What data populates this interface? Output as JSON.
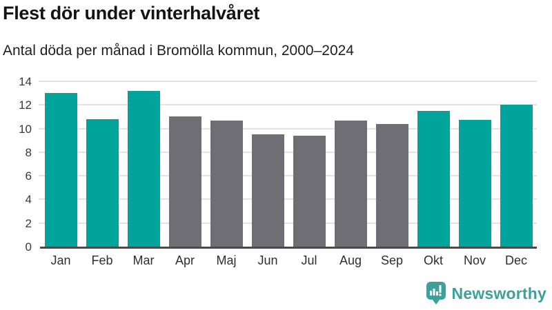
{
  "chart_data": {
    "type": "bar",
    "title": "Flest dör under vinterhalvåret",
    "subtitle": "Antal döda per månad i Bromölla kommun, 2000–2024",
    "categories": [
      "Jan",
      "Feb",
      "Mar",
      "Apr",
      "Maj",
      "Jun",
      "Jul",
      "Aug",
      "Sep",
      "Okt",
      "Nov",
      "Dec"
    ],
    "values": [
      13.0,
      10.8,
      13.2,
      11.0,
      10.65,
      9.5,
      9.4,
      10.65,
      10.4,
      11.5,
      10.75,
      12.0
    ],
    "bar_roles": [
      "winter",
      "winter",
      "winter",
      "summer",
      "summer",
      "summer",
      "summer",
      "summer",
      "summer",
      "winter",
      "winter",
      "winter"
    ],
    "palette": {
      "winter": "#00a49b",
      "summer": "#6e6e74"
    },
    "xlabel": "",
    "ylabel": "",
    "ylim": [
      0,
      14
    ],
    "yticks": [
      0,
      2,
      4,
      6,
      8,
      10,
      12,
      14
    ],
    "grid": "horizontal",
    "legend": "none"
  },
  "footer": {
    "brand": "Newsworthy",
    "logo_icon": "newsworthy-bar-chart-speech-bubble"
  },
  "colors": {
    "background": "#ffffff",
    "title_text": "#141414",
    "subtitle_text": "#1f1f1f",
    "tick_text": "#383838",
    "axis_line": "#4a4a4a",
    "gridline": "#e3e3e3",
    "accent_teal": "#00a49b",
    "neutral_gray": "#6e6e74",
    "logo_teal": "#3da09a"
  }
}
